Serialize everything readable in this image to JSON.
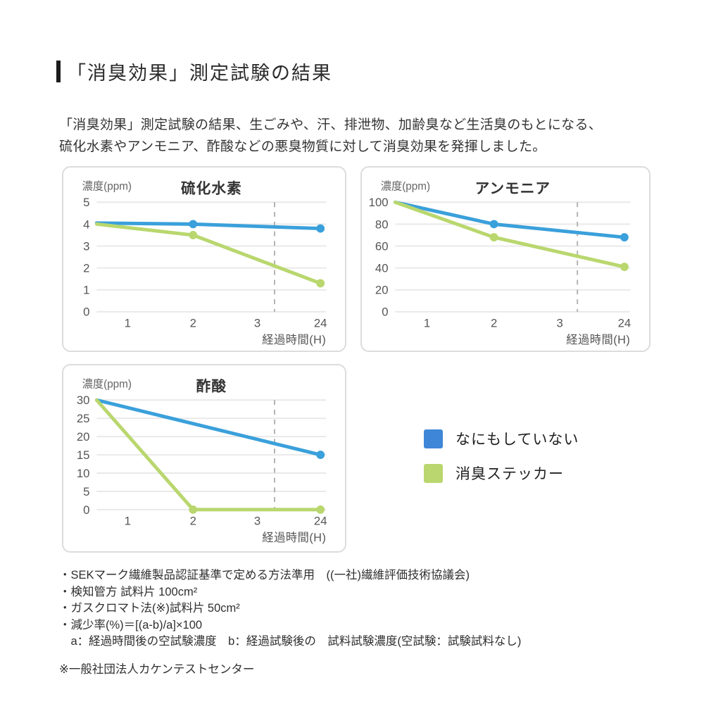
{
  "page": {
    "title": "「消臭効果」測定試験の結果",
    "intro_line1": "「消臭効果」測定試験の結果、生ごみや、汗、排泄物、加齢臭など生活臭のもとになる、",
    "intro_line2": "硫化水素やアンモニア、酢酸などの悪臭物質に対して消臭効果を発揮しました。"
  },
  "colors": {
    "line_blue": "#3aa0db",
    "line_green": "#b9d76e",
    "legend_blue": "#3e86d8",
    "legend_green": "#b9d76e",
    "grid": "#e9e9e9",
    "dashed_guide": "#b3b3b3",
    "panel_border": "#dcdcdc",
    "axis_text": "#555555",
    "label_text": "#666666",
    "title_text": "#333333"
  },
  "chart_data": [
    {
      "type": "line",
      "title": "硫化水素",
      "ylabel": "濃度(ppm)",
      "xlabel": "経過時間(H)",
      "ylim": [
        0,
        5
      ],
      "yticks": [
        5,
        4,
        3,
        2,
        1,
        0
      ],
      "xticks": [
        "1",
        "2",
        "3",
        "24"
      ],
      "grid": true,
      "legend_position": "outside",
      "dashed_guide_between": "3 and 24",
      "series": [
        {
          "name": "なにもしていない",
          "color": "blue",
          "x": [
            "start",
            "2",
            "24"
          ],
          "values": [
            4.05,
            4.0,
            3.8
          ],
          "dots": [
            false,
            true,
            true
          ]
        },
        {
          "name": "消臭ステッカー",
          "color": "green",
          "x": [
            "start",
            "2",
            "24"
          ],
          "values": [
            4.0,
            3.5,
            1.3
          ],
          "dots": [
            false,
            true,
            true
          ]
        }
      ]
    },
    {
      "type": "line",
      "title": "アンモニア",
      "ylabel": "濃度(ppm)",
      "xlabel": "経過時間(H)",
      "ylim": [
        0,
        100
      ],
      "yticks": [
        100,
        80,
        60,
        40,
        20,
        0
      ],
      "xticks": [
        "1",
        "2",
        "3",
        "24"
      ],
      "grid": true,
      "legend_position": "outside",
      "dashed_guide_between": "3 and 24",
      "series": [
        {
          "name": "なにもしていない",
          "color": "blue",
          "x": [
            "start",
            "2",
            "24"
          ],
          "values": [
            100,
            80,
            68
          ],
          "dots": [
            false,
            true,
            true
          ]
        },
        {
          "name": "消臭ステッカー",
          "color": "green",
          "x": [
            "start",
            "2",
            "24"
          ],
          "values": [
            100,
            68,
            41
          ],
          "dots": [
            false,
            true,
            true
          ]
        }
      ]
    },
    {
      "type": "line",
      "title": "酢酸",
      "ylabel": "濃度(ppm)",
      "xlabel": "経過時間(H)",
      "ylim": [
        0,
        30
      ],
      "yticks": [
        30,
        25,
        20,
        15,
        10,
        5,
        0
      ],
      "xticks": [
        "1",
        "2",
        "3",
        "24"
      ],
      "grid": true,
      "legend_position": "outside",
      "dashed_guide_between": "3 and 24",
      "series": [
        {
          "name": "なにもしていない",
          "color": "blue",
          "x": [
            "start",
            "24"
          ],
          "values": [
            30,
            15
          ],
          "dots": [
            false,
            true
          ]
        },
        {
          "name": "消臭ステッカー",
          "color": "green",
          "x": [
            "start",
            "2",
            "24"
          ],
          "values": [
            30,
            0,
            0
          ],
          "dots": [
            false,
            true,
            true
          ]
        }
      ]
    }
  ],
  "legend": {
    "items": [
      {
        "label": "なにもしていない",
        "color": "#3e86d8"
      },
      {
        "label": "消臭ステッカー",
        "color": "#b9d76e"
      }
    ]
  },
  "notes": {
    "lines": [
      "・SEKマーク繊維製品認証基準で定める方法準用　((一社)繊維評価技術協議会)",
      "・検知管方 試料片 100cm²",
      "・ガスクロマト法(※)試料片 50cm²",
      "・減少率(%)＝[(a-b)/a]×100",
      "　a：経過時間後の空試験濃度　b：経過試験後の　試料試験濃度(空試験：試験試料なし)"
    ],
    "footnote": "※一般社団法人カケンテストセンター"
  }
}
